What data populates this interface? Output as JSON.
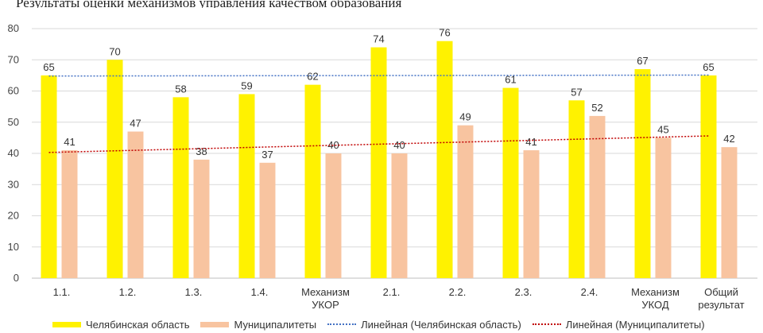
{
  "header_text": "Результаты оценки механизмов управления качеством образования",
  "chart_data": {
    "type": "bar",
    "categories": [
      "1.1.",
      "1.2.",
      "1.3.",
      "1.4.",
      "Механизм\nУКОР",
      "2.1.",
      "2.2.",
      "2.3.",
      "2.4.",
      "Механизм\nУКОД",
      "Общий\nрезультат"
    ],
    "series": [
      {
        "name": "Челябинская область",
        "values": [
          65,
          70,
          58,
          59,
          62,
          74,
          76,
          61,
          57,
          67,
          65
        ],
        "color": "#FFF200"
      },
      {
        "name": "Муниципалитеты",
        "values": [
          41,
          47,
          38,
          37,
          40,
          40,
          49,
          41,
          52,
          45,
          42
        ],
        "color": "#F8C4A0"
      }
    ],
    "trendlines": [
      {
        "name": "Линейная (Челябинская область)",
        "color": "#4472C4",
        "start": 64.8,
        "end": 65.1
      },
      {
        "name": "Линейная (Муниципалитеты)",
        "color": "#C00000",
        "start": 40.3,
        "end": 45.6
      }
    ],
    "ylim": [
      0,
      80
    ],
    "yticks": [
      0,
      10,
      20,
      30,
      40,
      50,
      60,
      70,
      80
    ],
    "grid": true,
    "legend_position": "bottom"
  }
}
